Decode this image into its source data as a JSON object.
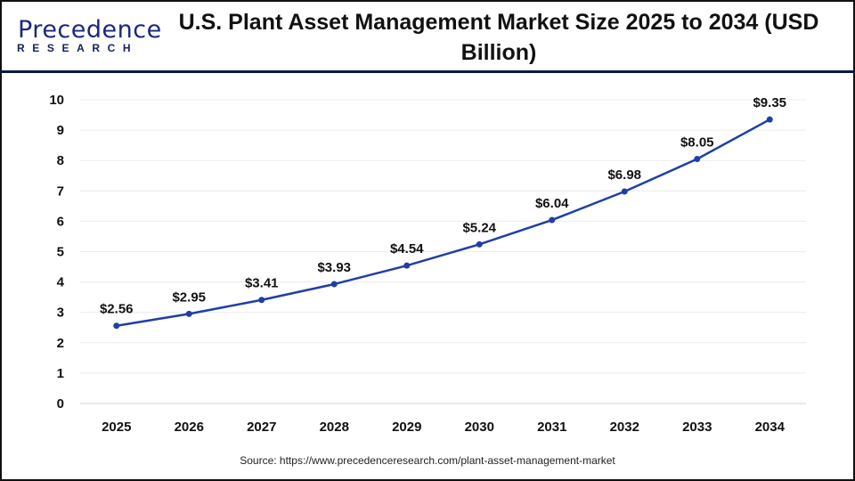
{
  "logo": {
    "main": "Precedence",
    "sub": "RESEARCH",
    "colors": {
      "navy": "#1a2a7a",
      "blue": "#2d6be0"
    }
  },
  "source": "Source: https://www.precedenceresearch.com/plant-asset-management-market",
  "chart_data": {
    "type": "line",
    "title": "U.S. Plant Asset Management Market Size 2025 to 2034 (USD Billion)",
    "xlabel": "",
    "ylabel": "",
    "categories": [
      "2025",
      "2026",
      "2027",
      "2028",
      "2029",
      "2030",
      "2031",
      "2032",
      "2033",
      "2034"
    ],
    "values": [
      2.56,
      2.95,
      3.41,
      3.93,
      4.54,
      5.24,
      6.04,
      6.98,
      8.05,
      9.35
    ],
    "data_labels": [
      "$2.56",
      "$2.95",
      "$3.41",
      "$3.93",
      "$4.54",
      "$5.24",
      "$6.04",
      "$6.98",
      "$8.05",
      "$9.35"
    ],
    "ylim": [
      0,
      10
    ],
    "yticks": [
      "0",
      "1",
      "2",
      "3",
      "4",
      "5",
      "6",
      "7",
      "8",
      "9",
      "10"
    ],
    "grid": true,
    "line_color": "#1f3ea8"
  }
}
